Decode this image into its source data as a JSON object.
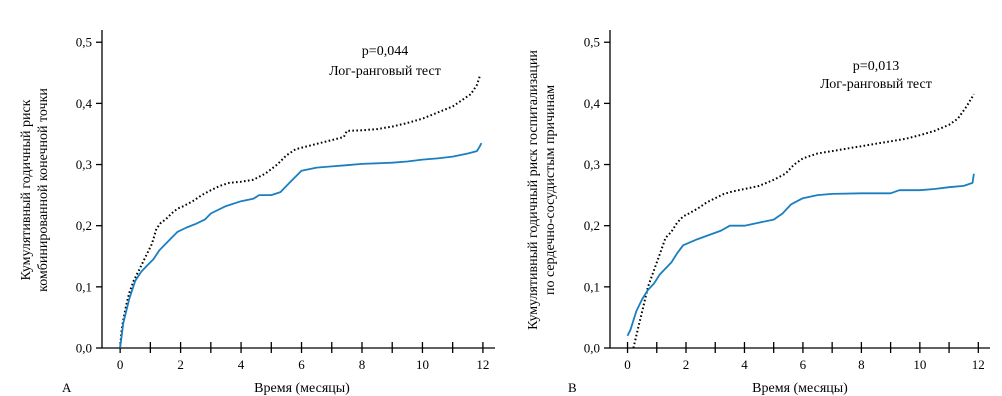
{
  "chart_data": [
    {
      "type": "line",
      "panel_label": "A",
      "xlabel": "Время (месяцы)",
      "ylabel_lines": [
        "Кумулятивный годичный риск",
        "комбинированной конечной точки"
      ],
      "xlim": [
        -0.6,
        12.4
      ],
      "ylim": [
        0,
        0.52
      ],
      "x_ticks": [
        0,
        2,
        4,
        6,
        8,
        10,
        12
      ],
      "x_tick_labels": [
        "0",
        "2",
        "4",
        "6",
        "8",
        "10",
        "12"
      ],
      "y_ticks": [
        0,
        0.1,
        0.2,
        0.3,
        0.4,
        0.5
      ],
      "y_tick_labels": [
        "0,0",
        "0,1",
        "0,2",
        "0,3",
        "0,4",
        "0,5"
      ],
      "annotations": [
        "p=0,044",
        "Лог-ранговый тест"
      ],
      "series": [
        {
          "style": "dotted",
          "color": "#000000",
          "x": [
            0,
            0.05,
            0.1,
            0.2,
            0.3,
            0.45,
            0.6,
            0.75,
            0.9,
            1.05,
            1.2,
            1.35,
            1.5,
            1.7,
            1.9,
            2.1,
            2.4,
            2.7,
            3.0,
            3.3,
            3.6,
            4.0,
            4.4,
            4.8,
            5.2,
            5.5,
            5.8,
            6.2,
            6.6,
            7.0,
            7.4,
            7.5,
            8.0,
            8.5,
            9.0,
            9.5,
            10.0,
            10.5,
            11.0,
            11.3,
            11.6,
            11.8,
            11.9
          ],
          "y": [
            0,
            0.03,
            0.045,
            0.07,
            0.09,
            0.11,
            0.125,
            0.14,
            0.155,
            0.17,
            0.195,
            0.205,
            0.21,
            0.22,
            0.228,
            0.232,
            0.24,
            0.25,
            0.258,
            0.265,
            0.27,
            0.272,
            0.275,
            0.285,
            0.3,
            0.315,
            0.325,
            0.33,
            0.335,
            0.34,
            0.345,
            0.355,
            0.356,
            0.358,
            0.362,
            0.368,
            0.375,
            0.385,
            0.395,
            0.405,
            0.415,
            0.43,
            0.445
          ]
        },
        {
          "style": "solid",
          "color": "#1a7fc0",
          "x": [
            0,
            0.05,
            0.1,
            0.2,
            0.3,
            0.5,
            0.7,
            0.9,
            1.1,
            1.3,
            1.5,
            1.7,
            1.9,
            2.2,
            2.5,
            2.8,
            3.0,
            3.5,
            4.0,
            4.4,
            4.6,
            5.0,
            5.3,
            5.6,
            5.9,
            6.0,
            6.5,
            7.0,
            7.5,
            8.0,
            8.5,
            9.0,
            9.5,
            10.0,
            10.5,
            11.0,
            11.5,
            11.8,
            11.9,
            11.95
          ],
          "y": [
            0,
            0.02,
            0.04,
            0.06,
            0.08,
            0.11,
            0.125,
            0.135,
            0.145,
            0.16,
            0.17,
            0.18,
            0.19,
            0.197,
            0.203,
            0.21,
            0.22,
            0.232,
            0.24,
            0.244,
            0.25,
            0.25,
            0.255,
            0.27,
            0.285,
            0.29,
            0.295,
            0.297,
            0.299,
            0.301,
            0.302,
            0.303,
            0.305,
            0.308,
            0.31,
            0.313,
            0.318,
            0.322,
            0.33,
            0.335
          ]
        }
      ]
    },
    {
      "type": "line",
      "panel_label": "B",
      "xlabel": "Время (месяцы)",
      "ylabel_lines": [
        "Кумулятивный годичный риск госпитализации",
        "по сердечно-сосудистым причинам"
      ],
      "xlim": [
        -0.6,
        12.4
      ],
      "ylim": [
        0,
        0.52
      ],
      "x_ticks": [
        0,
        2,
        4,
        6,
        8,
        10,
        12
      ],
      "x_tick_labels": [
        "0",
        "2",
        "4",
        "6",
        "8",
        "10",
        "12"
      ],
      "y_ticks": [
        0,
        0.1,
        0.2,
        0.3,
        0.4,
        0.5
      ],
      "y_tick_labels": [
        "0,0",
        "0,1",
        "0,2",
        "0,3",
        "0,4",
        "0,5"
      ],
      "annotations": [
        "p=0,013",
        "Лог-ранговый тест"
      ],
      "series": [
        {
          "style": "dotted",
          "color": "#000000",
          "x": [
            0.2,
            0.3,
            0.4,
            0.5,
            0.6,
            0.7,
            0.85,
            1.0,
            1.15,
            1.3,
            1.5,
            1.7,
            1.9,
            2.1,
            2.4,
            2.7,
            3.0,
            3.3,
            3.6,
            4.0,
            4.5,
            5.0,
            5.4,
            5.7,
            6.0,
            6.5,
            7.0,
            7.5,
            8.0,
            8.5,
            9.0,
            9.5,
            10.0,
            10.5,
            11.0,
            11.3,
            11.6,
            11.85
          ],
          "y": [
            0.0,
            0.02,
            0.04,
            0.06,
            0.08,
            0.1,
            0.12,
            0.14,
            0.16,
            0.18,
            0.19,
            0.205,
            0.215,
            0.22,
            0.228,
            0.238,
            0.245,
            0.252,
            0.256,
            0.26,
            0.265,
            0.275,
            0.285,
            0.3,
            0.31,
            0.318,
            0.322,
            0.326,
            0.33,
            0.334,
            0.338,
            0.342,
            0.348,
            0.355,
            0.365,
            0.375,
            0.395,
            0.415
          ]
        },
        {
          "style": "solid",
          "color": "#1a7fc0",
          "x": [
            0,
            0.1,
            0.2,
            0.3,
            0.4,
            0.5,
            0.7,
            0.9,
            1.1,
            1.3,
            1.5,
            1.7,
            1.9,
            2.1,
            2.4,
            2.8,
            3.2,
            3.5,
            4.0,
            4.5,
            5.0,
            5.3,
            5.6,
            5.8,
            6.0,
            6.5,
            7.0,
            8.0,
            9.0,
            9.3,
            10.0,
            10.5,
            11.0,
            11.5,
            11.8,
            11.85
          ],
          "y": [
            0.02,
            0.03,
            0.045,
            0.06,
            0.07,
            0.08,
            0.095,
            0.105,
            0.12,
            0.13,
            0.14,
            0.155,
            0.168,
            0.172,
            0.178,
            0.185,
            0.192,
            0.2,
            0.2,
            0.205,
            0.21,
            0.22,
            0.235,
            0.24,
            0.245,
            0.25,
            0.252,
            0.253,
            0.253,
            0.258,
            0.258,
            0.26,
            0.263,
            0.265,
            0.27,
            0.285
          ]
        }
      ]
    }
  ]
}
